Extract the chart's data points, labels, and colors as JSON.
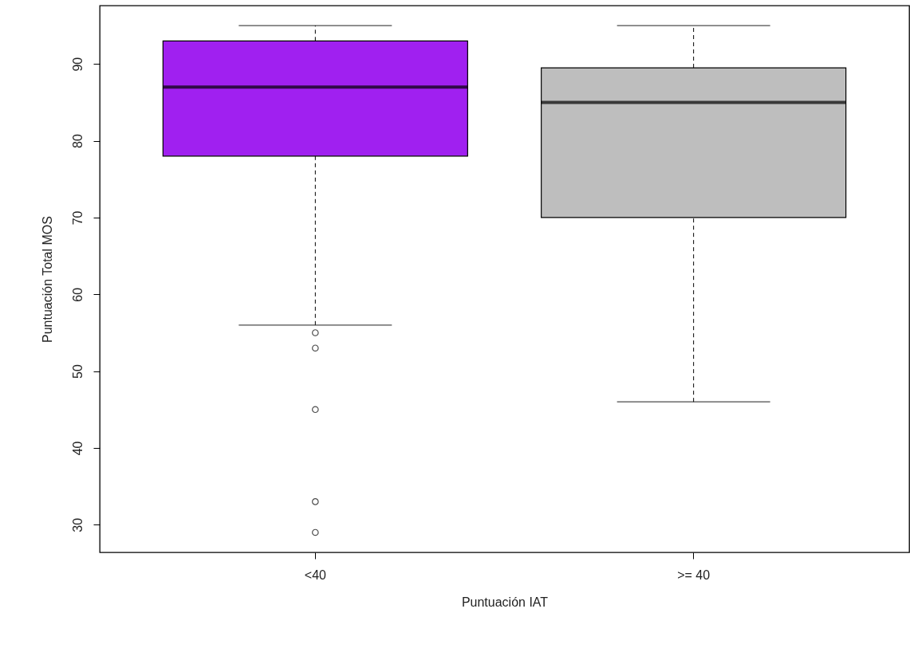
{
  "chart_data": {
    "type": "box",
    "xlabel": "Puntuación IAT",
    "ylabel": "Puntuación Total MOS",
    "categories": [
      "<40",
      ">= 40"
    ],
    "colors": [
      "#a020f0",
      "#bebebe"
    ],
    "boxes": [
      {
        "low": 56,
        "q1": 78,
        "median": 87,
        "q3": 93,
        "high": 95,
        "outliers": [
          55,
          53,
          45,
          33,
          29
        ]
      },
      {
        "low": 46,
        "q1": 70,
        "median": 85,
        "q3": 89.5,
        "high": 95
      }
    ],
    "ylim": [
      26.4,
      97.6
    ],
    "yticks": [
      30,
      40,
      50,
      60,
      70,
      80,
      90
    ]
  }
}
